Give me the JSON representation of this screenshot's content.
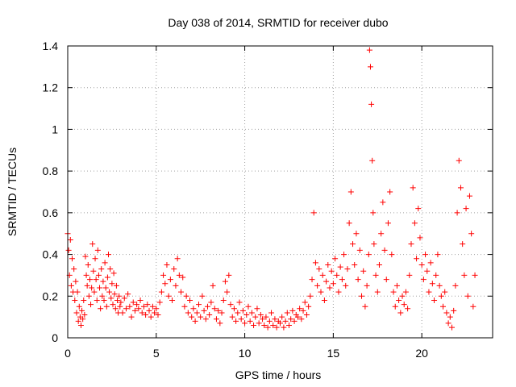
{
  "chart_data": {
    "type": "scatter",
    "title": "Day 038 of 2014, SRMTID for receiver dubo",
    "xlabel": "GPS time / hours",
    "ylabel": "SRMTID / TECUs",
    "xlim": [
      0,
      24
    ],
    "ylim": [
      0,
      1.4
    ],
    "xticks": [
      0,
      5,
      10,
      15,
      20
    ],
    "yticks": [
      0,
      0.2,
      0.4,
      0.6,
      0.8,
      1,
      1.2,
      1.4
    ],
    "xtick_labels": [
      "0",
      "5",
      "10",
      "15",
      "20"
    ],
    "ytick_labels": [
      "0",
      "0.2",
      "0.4",
      "0.6",
      "0.8",
      "1",
      "1.2",
      "1.4"
    ],
    "grid": true,
    "marker": "+",
    "color": "#ff0000",
    "series": [
      {
        "name": "SRMTID",
        "points": [
          [
            0.0,
            0.5
          ],
          [
            0.05,
            0.42
          ],
          [
            0.1,
            0.3
          ],
          [
            0.15,
            0.47
          ],
          [
            0.2,
            0.25
          ],
          [
            0.25,
            0.38
          ],
          [
            0.3,
            0.22
          ],
          [
            0.35,
            0.33
          ],
          [
            0.4,
            0.18
          ],
          [
            0.45,
            0.27
          ],
          [
            0.5,
            0.12
          ],
          [
            0.55,
            0.22
          ],
          [
            0.6,
            0.08
          ],
          [
            0.65,
            0.15
          ],
          [
            0.7,
            0.1
          ],
          [
            0.75,
            0.06
          ],
          [
            0.8,
            0.13
          ],
          [
            0.85,
            0.09
          ],
          [
            0.9,
            0.18
          ],
          [
            0.95,
            0.11
          ],
          [
            1.0,
            0.39
          ],
          [
            1.05,
            0.3
          ],
          [
            1.1,
            0.25
          ],
          [
            1.15,
            0.35
          ],
          [
            1.2,
            0.2
          ],
          [
            1.25,
            0.28
          ],
          [
            1.3,
            0.16
          ],
          [
            1.35,
            0.24
          ],
          [
            1.4,
            0.45
          ],
          [
            1.45,
            0.32
          ],
          [
            1.5,
            0.22
          ],
          [
            1.55,
            0.38
          ],
          [
            1.6,
            0.28
          ],
          [
            1.65,
            0.18
          ],
          [
            1.7,
            0.42
          ],
          [
            1.75,
            0.3
          ],
          [
            1.8,
            0.24
          ],
          [
            1.85,
            0.14
          ],
          [
            1.9,
            0.33
          ],
          [
            1.95,
            0.2
          ],
          [
            2.0,
            0.27
          ],
          [
            2.05,
            0.18
          ],
          [
            2.1,
            0.36
          ],
          [
            2.15,
            0.24
          ],
          [
            2.2,
            0.15
          ],
          [
            2.25,
            0.29
          ],
          [
            2.3,
            0.4
          ],
          [
            2.35,
            0.22
          ],
          [
            2.4,
            0.33
          ],
          [
            2.45,
            0.19
          ],
          [
            2.5,
            0.26
          ],
          [
            2.55,
            0.16
          ],
          [
            2.6,
            0.31
          ],
          [
            2.65,
            0.21
          ],
          [
            2.7,
            0.14
          ],
          [
            2.75,
            0.25
          ],
          [
            2.8,
            0.18
          ],
          [
            2.85,
            0.12
          ],
          [
            2.9,
            0.2
          ],
          [
            2.95,
            0.15
          ],
          [
            3.0,
            0.17
          ],
          [
            3.1,
            0.12
          ],
          [
            3.2,
            0.19
          ],
          [
            3.3,
            0.14
          ],
          [
            3.4,
            0.21
          ],
          [
            3.5,
            0.15
          ],
          [
            3.6,
            0.1
          ],
          [
            3.7,
            0.17
          ],
          [
            3.8,
            0.13
          ],
          [
            3.9,
            0.16
          ],
          [
            4.0,
            0.14
          ],
          [
            4.1,
            0.18
          ],
          [
            4.2,
            0.12
          ],
          [
            4.3,
            0.15
          ],
          [
            4.4,
            0.11
          ],
          [
            4.5,
            0.16
          ],
          [
            4.6,
            0.13
          ],
          [
            4.7,
            0.1
          ],
          [
            4.8,
            0.15
          ],
          [
            4.9,
            0.12
          ],
          [
            5.0,
            0.14
          ],
          [
            5.1,
            0.11
          ],
          [
            5.2,
            0.17
          ],
          [
            5.3,
            0.22
          ],
          [
            5.4,
            0.3
          ],
          [
            5.5,
            0.26
          ],
          [
            5.6,
            0.35
          ],
          [
            5.7,
            0.2
          ],
          [
            5.8,
            0.28
          ],
          [
            5.9,
            0.18
          ],
          [
            6.0,
            0.33
          ],
          [
            6.1,
            0.25
          ],
          [
            6.2,
            0.38
          ],
          [
            6.3,
            0.3
          ],
          [
            6.4,
            0.22
          ],
          [
            6.5,
            0.29
          ],
          [
            6.6,
            0.15
          ],
          [
            6.7,
            0.2
          ],
          [
            6.8,
            0.12
          ],
          [
            6.9,
            0.18
          ],
          [
            7.0,
            0.1
          ],
          [
            7.1,
            0.14
          ],
          [
            7.2,
            0.08
          ],
          [
            7.3,
            0.12
          ],
          [
            7.4,
            0.16
          ],
          [
            7.5,
            0.1
          ],
          [
            7.6,
            0.2
          ],
          [
            7.7,
            0.13
          ],
          [
            7.8,
            0.09
          ],
          [
            7.9,
            0.15
          ],
          [
            8.0,
            0.11
          ],
          [
            8.1,
            0.17
          ],
          [
            8.2,
            0.25
          ],
          [
            8.3,
            0.14
          ],
          [
            8.4,
            0.09
          ],
          [
            8.5,
            0.13
          ],
          [
            8.6,
            0.07
          ],
          [
            8.7,
            0.12
          ],
          [
            8.8,
            0.18
          ],
          [
            8.9,
            0.27
          ],
          [
            9.0,
            0.22
          ],
          [
            9.1,
            0.3
          ],
          [
            9.2,
            0.16
          ],
          [
            9.3,
            0.1
          ],
          [
            9.4,
            0.14
          ],
          [
            9.5,
            0.08
          ],
          [
            9.6,
            0.12
          ],
          [
            9.7,
            0.17
          ],
          [
            9.8,
            0.09
          ],
          [
            9.9,
            0.13
          ],
          [
            10.0,
            0.07
          ],
          [
            10.1,
            0.11
          ],
          [
            10.2,
            0.15
          ],
          [
            10.3,
            0.08
          ],
          [
            10.4,
            0.12
          ],
          [
            10.5,
            0.06
          ],
          [
            10.6,
            0.1
          ],
          [
            10.7,
            0.14
          ],
          [
            10.8,
            0.07
          ],
          [
            10.9,
            0.11
          ],
          [
            11.0,
            0.09
          ],
          [
            11.1,
            0.06
          ],
          [
            11.2,
            0.1
          ],
          [
            11.3,
            0.05
          ],
          [
            11.4,
            0.08
          ],
          [
            11.5,
            0.12
          ],
          [
            11.6,
            0.06
          ],
          [
            11.7,
            0.09
          ],
          [
            11.8,
            0.05
          ],
          [
            11.9,
            0.08
          ],
          [
            12.0,
            0.07
          ],
          [
            12.1,
            0.1
          ],
          [
            12.2,
            0.05
          ],
          [
            12.3,
            0.08
          ],
          [
            12.4,
            0.12
          ],
          [
            12.5,
            0.06
          ],
          [
            12.6,
            0.09
          ],
          [
            12.7,
            0.13
          ],
          [
            12.8,
            0.08
          ],
          [
            12.9,
            0.11
          ],
          [
            13.0,
            0.1
          ],
          [
            13.1,
            0.14
          ],
          [
            13.2,
            0.09
          ],
          [
            13.3,
            0.13
          ],
          [
            13.4,
            0.17
          ],
          [
            13.5,
            0.11
          ],
          [
            13.6,
            0.15
          ],
          [
            13.7,
            0.2
          ],
          [
            13.8,
            0.28
          ],
          [
            13.9,
            0.6
          ],
          [
            14.0,
            0.36
          ],
          [
            14.1,
            0.25
          ],
          [
            14.2,
            0.33
          ],
          [
            14.3,
            0.22
          ],
          [
            14.4,
            0.3
          ],
          [
            14.5,
            0.18
          ],
          [
            14.6,
            0.27
          ],
          [
            14.7,
            0.35
          ],
          [
            14.8,
            0.24
          ],
          [
            14.9,
            0.32
          ],
          [
            15.0,
            0.26
          ],
          [
            15.1,
            0.38
          ],
          [
            15.2,
            0.3
          ],
          [
            15.3,
            0.22
          ],
          [
            15.4,
            0.34
          ],
          [
            15.5,
            0.28
          ],
          [
            15.6,
            0.4
          ],
          [
            15.7,
            0.25
          ],
          [
            15.8,
            0.33
          ],
          [
            15.9,
            0.55
          ],
          [
            16.0,
            0.7
          ],
          [
            16.1,
            0.45
          ],
          [
            16.2,
            0.35
          ],
          [
            16.3,
            0.5
          ],
          [
            16.4,
            0.28
          ],
          [
            16.5,
            0.42
          ],
          [
            16.6,
            0.2
          ],
          [
            16.7,
            0.32
          ],
          [
            16.8,
            0.15
          ],
          [
            16.9,
            0.25
          ],
          [
            17.0,
            0.4
          ],
          [
            17.05,
            1.38
          ],
          [
            17.1,
            1.3
          ],
          [
            17.15,
            1.12
          ],
          [
            17.2,
            0.85
          ],
          [
            17.25,
            0.6
          ],
          [
            17.3,
            0.45
          ],
          [
            17.4,
            0.3
          ],
          [
            17.5,
            0.22
          ],
          [
            17.6,
            0.35
          ],
          [
            17.7,
            0.5
          ],
          [
            17.8,
            0.65
          ],
          [
            17.9,
            0.42
          ],
          [
            18.0,
            0.28
          ],
          [
            18.1,
            0.55
          ],
          [
            18.2,
            0.7
          ],
          [
            18.3,
            0.4
          ],
          [
            18.4,
            0.22
          ],
          [
            18.5,
            0.15
          ],
          [
            18.6,
            0.25
          ],
          [
            18.7,
            0.18
          ],
          [
            18.8,
            0.12
          ],
          [
            18.9,
            0.2
          ],
          [
            19.0,
            0.16
          ],
          [
            19.1,
            0.22
          ],
          [
            19.2,
            0.14
          ],
          [
            19.3,
            0.3
          ],
          [
            19.4,
            0.45
          ],
          [
            19.5,
            0.72
          ],
          [
            19.6,
            0.55
          ],
          [
            19.7,
            0.38
          ],
          [
            19.8,
            0.62
          ],
          [
            19.9,
            0.48
          ],
          [
            20.0,
            0.35
          ],
          [
            20.1,
            0.28
          ],
          [
            20.2,
            0.4
          ],
          [
            20.3,
            0.32
          ],
          [
            20.4,
            0.22
          ],
          [
            20.5,
            0.36
          ],
          [
            20.6,
            0.26
          ],
          [
            20.7,
            0.18
          ],
          [
            20.8,
            0.3
          ],
          [
            20.9,
            0.4
          ],
          [
            21.0,
            0.25
          ],
          [
            21.1,
            0.2
          ],
          [
            21.2,
            0.15
          ],
          [
            21.3,
            0.22
          ],
          [
            21.4,
            0.12
          ],
          [
            21.5,
            0.07
          ],
          [
            21.6,
            0.1
          ],
          [
            21.7,
            0.05
          ],
          [
            21.8,
            0.13
          ],
          [
            21.9,
            0.25
          ],
          [
            22.0,
            0.6
          ],
          [
            22.1,
            0.85
          ],
          [
            22.2,
            0.72
          ],
          [
            22.3,
            0.45
          ],
          [
            22.4,
            0.3
          ],
          [
            22.5,
            0.62
          ],
          [
            22.6,
            0.2
          ],
          [
            22.7,
            0.68
          ],
          [
            22.8,
            0.5
          ],
          [
            22.9,
            0.15
          ],
          [
            23.0,
            0.3
          ]
        ]
      }
    ]
  }
}
